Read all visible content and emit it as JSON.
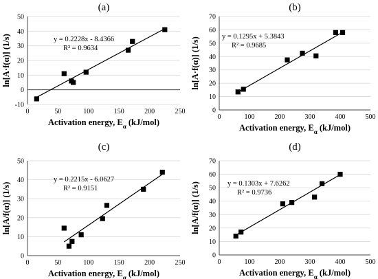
{
  "chart_data": [
    {
      "type": "scatter",
      "panel": "(a)",
      "xlabel": "Activation energy, E",
      "xlabel_sub": "α",
      "xlabel_unit": " (kJ/mol)",
      "ylabel": "ln[A·f(α)] (1/s)",
      "xlim": [
        0,
        250
      ],
      "xticks": [
        0,
        50,
        100,
        150,
        200,
        250
      ],
      "ylim": [
        -10,
        50
      ],
      "yticks": [
        -10,
        0,
        10,
        20,
        30,
        40,
        50
      ],
      "grid": "horizontal",
      "points": [
        [
          15,
          -6.2
        ],
        [
          60,
          11
        ],
        [
          72,
          6
        ],
        [
          75,
          5
        ],
        [
          96,
          12
        ],
        [
          165,
          27
        ],
        [
          172,
          33
        ],
        [
          225,
          41
        ]
      ],
      "trendline": {
        "slope": 0.2228,
        "intercept": -8.4366,
        "x_range": [
          15,
          225
        ]
      },
      "equation": "y = 0.2228x - 8.4366",
      "r2": "R² = 0.9634"
    },
    {
      "type": "scatter",
      "panel": "(b)",
      "xlabel": "Activation energy, E",
      "xlabel_sub": "α",
      "xlabel_unit": " (kJ/mol)",
      "ylabel": "ln[A·f(α)] (1/s)",
      "xlim": [
        0,
        500
      ],
      "xticks": [
        0,
        100,
        200,
        300,
        400,
        500
      ],
      "ylim": [
        0,
        70
      ],
      "yticks": [
        0,
        10,
        20,
        30,
        40,
        50,
        60,
        70
      ],
      "grid": "horizontal",
      "points": [
        [
          62,
          13.5
        ],
        [
          80,
          15.5
        ],
        [
          225,
          37.5
        ],
        [
          275,
          42.5
        ],
        [
          320,
          40.5
        ],
        [
          385,
          58
        ],
        [
          408,
          58
        ]
      ],
      "trendline": {
        "slope": 0.1295,
        "intercept": 5.3843,
        "x_range": [
          62,
          408
        ]
      },
      "equation": "y = 0.1295x + 5.3843",
      "r2": "R² = 0.9685"
    },
    {
      "type": "scatter",
      "panel": "(c)",
      "xlabel": "Activation energy, E",
      "xlabel_sub": "α",
      "xlabel_unit": " (kJ/mol)",
      "ylabel": "ln[A/f(α)] (1/s)",
      "xlim": [
        0,
        250
      ],
      "xticks": [
        0,
        50,
        100,
        150,
        200,
        250
      ],
      "ylim": [
        0,
        50
      ],
      "yticks": [
        0,
        10,
        20,
        30,
        40,
        50
      ],
      "grid": "horizontal",
      "points": [
        [
          60,
          14.5
        ],
        [
          68,
          5
        ],
        [
          73,
          7.5
        ],
        [
          88,
          11
        ],
        [
          123,
          19.5
        ],
        [
          130,
          26.5
        ],
        [
          190,
          35
        ],
        [
          221,
          44
        ]
      ],
      "trendline": {
        "slope": 0.2215,
        "intercept": -6.0627,
        "x_range": [
          60,
          221
        ]
      },
      "equation": "y = 0.2215x - 6.0627",
      "r2": "R² = 0.9151"
    },
    {
      "type": "scatter",
      "panel": "(d)",
      "xlabel": "Activation energy, E",
      "xlabel_sub": "α",
      "xlabel_unit": " (kJ/mol)",
      "ylabel": "ln[A/f(α)] (1/s)",
      "xlim": [
        0,
        500
      ],
      "xticks": [
        0,
        100,
        200,
        300,
        400,
        500
      ],
      "ylim": [
        0,
        70
      ],
      "yticks": [
        0,
        10,
        20,
        30,
        40,
        50,
        60,
        70
      ],
      "grid": "horizontal",
      "points": [
        [
          55,
          14
        ],
        [
          72,
          17
        ],
        [
          210,
          38
        ],
        [
          240,
          39
        ],
        [
          315,
          43
        ],
        [
          340,
          53
        ],
        [
          400,
          60
        ]
      ],
      "trendline": {
        "slope": 0.1303,
        "intercept": 7.6262,
        "x_range": [
          55,
          400
        ]
      },
      "equation": "y = 0.1303x + 7.6262",
      "r2": "R² = 0.9736"
    }
  ]
}
